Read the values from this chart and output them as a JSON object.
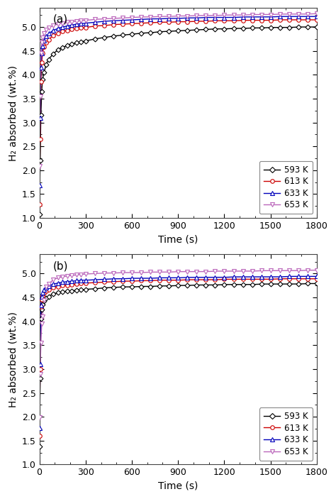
{
  "panel_a": {
    "label": "(a)",
    "series": [
      {
        "temp": "593 K",
        "color": "#000000",
        "marker": "D",
        "marker_size": 3.5,
        "x": [
          0,
          5,
          10,
          15,
          20,
          30,
          45,
          60,
          90,
          120,
          150,
          180,
          210,
          240,
          270,
          300,
          360,
          420,
          480,
          540,
          600,
          660,
          720,
          780,
          840,
          900,
          960,
          1020,
          1080,
          1140,
          1200,
          1260,
          1320,
          1380,
          1440,
          1500,
          1560,
          1620,
          1680,
          1740,
          1800
        ],
        "y": [
          1.08,
          2.2,
          3.15,
          3.65,
          3.9,
          4.05,
          4.22,
          4.32,
          4.44,
          4.52,
          4.57,
          4.61,
          4.64,
          4.67,
          4.69,
          4.71,
          4.75,
          4.78,
          4.81,
          4.83,
          4.85,
          4.87,
          4.88,
          4.9,
          4.91,
          4.92,
          4.93,
          4.94,
          4.95,
          4.96,
          4.96,
          4.97,
          4.97,
          4.98,
          4.98,
          4.99,
          4.99,
          4.99,
          5.0,
          5.0,
          5.0
        ]
      },
      {
        "temp": "613 K",
        "color": "#cc0000",
        "marker": "o",
        "marker_size": 4,
        "x": [
          0,
          5,
          10,
          15,
          20,
          30,
          45,
          60,
          90,
          120,
          150,
          180,
          210,
          240,
          270,
          300,
          360,
          420,
          480,
          540,
          600,
          660,
          720,
          780,
          840,
          900,
          960,
          1020,
          1080,
          1140,
          1200,
          1260,
          1320,
          1380,
          1440,
          1500,
          1560,
          1620,
          1680,
          1740,
          1800
        ],
        "y": [
          1.28,
          2.65,
          3.85,
          4.25,
          4.45,
          4.58,
          4.68,
          4.74,
          4.82,
          4.87,
          4.91,
          4.93,
          4.95,
          4.97,
          4.98,
          4.99,
          5.02,
          5.03,
          5.05,
          5.06,
          5.07,
          5.08,
          5.09,
          5.1,
          5.1,
          5.11,
          5.11,
          5.12,
          5.12,
          5.13,
          5.13,
          5.13,
          5.14,
          5.14,
          5.14,
          5.14,
          5.15,
          5.15,
          5.15,
          5.15,
          5.15
        ]
      },
      {
        "temp": "633 K",
        "color": "#0000bb",
        "marker": "^",
        "marker_size": 4,
        "x": [
          0,
          5,
          10,
          15,
          20,
          30,
          45,
          60,
          90,
          120,
          150,
          180,
          210,
          240,
          270,
          300,
          360,
          420,
          480,
          540,
          600,
          660,
          720,
          780,
          840,
          900,
          960,
          1020,
          1080,
          1140,
          1200,
          1260,
          1320,
          1380,
          1440,
          1500,
          1560,
          1620,
          1680,
          1740,
          1800
        ],
        "y": [
          1.68,
          3.1,
          4.15,
          4.45,
          4.6,
          4.72,
          4.8,
          4.86,
          4.93,
          4.97,
          5.0,
          5.02,
          5.04,
          5.06,
          5.07,
          5.08,
          5.1,
          5.12,
          5.13,
          5.14,
          5.15,
          5.16,
          5.17,
          5.17,
          5.18,
          5.18,
          5.19,
          5.19,
          5.2,
          5.2,
          5.2,
          5.2,
          5.21,
          5.21,
          5.21,
          5.21,
          5.22,
          5.22,
          5.22,
          5.22,
          5.22
        ]
      },
      {
        "temp": "653 K",
        "color": "#bb66bb",
        "marker": "v",
        "marker_size": 4,
        "x": [
          0,
          5,
          10,
          15,
          20,
          30,
          45,
          60,
          90,
          120,
          150,
          180,
          210,
          240,
          270,
          300,
          360,
          420,
          480,
          540,
          600,
          660,
          720,
          780,
          840,
          900,
          960,
          1020,
          1080,
          1140,
          1200,
          1260,
          1320,
          1380,
          1440,
          1500,
          1560,
          1620,
          1680,
          1740,
          1800
        ],
        "y": [
          2.08,
          3.55,
          4.45,
          4.68,
          4.78,
          4.87,
          4.94,
          4.98,
          5.03,
          5.06,
          5.08,
          5.1,
          5.11,
          5.12,
          5.13,
          5.14,
          5.16,
          5.17,
          5.18,
          5.19,
          5.2,
          5.21,
          5.21,
          5.22,
          5.22,
          5.23,
          5.23,
          5.24,
          5.24,
          5.24,
          5.25,
          5.25,
          5.25,
          5.26,
          5.26,
          5.26,
          5.27,
          5.27,
          5.27,
          5.27,
          5.28
        ]
      }
    ],
    "ylim": [
      1.0,
      5.4
    ],
    "yticks": [
      1.0,
      1.5,
      2.0,
      2.5,
      3.0,
      3.5,
      4.0,
      4.5,
      5.0
    ]
  },
  "panel_b": {
    "label": "(b)",
    "series": [
      {
        "temp": "593 K",
        "color": "#000000",
        "marker": "D",
        "marker_size": 3.5,
        "x": [
          0,
          5,
          10,
          15,
          20,
          30,
          45,
          60,
          90,
          120,
          150,
          180,
          210,
          240,
          270,
          300,
          360,
          420,
          480,
          540,
          600,
          660,
          720,
          780,
          840,
          900,
          960,
          1020,
          1080,
          1140,
          1200,
          1260,
          1320,
          1380,
          1440,
          1500,
          1560,
          1620,
          1680,
          1740,
          1800
        ],
        "y": [
          1.38,
          2.8,
          4.05,
          4.25,
          4.35,
          4.42,
          4.49,
          4.52,
          4.57,
          4.6,
          4.62,
          4.63,
          4.64,
          4.65,
          4.66,
          4.67,
          4.68,
          4.7,
          4.71,
          4.72,
          4.72,
          4.73,
          4.73,
          4.74,
          4.74,
          4.75,
          4.75,
          4.76,
          4.76,
          4.76,
          4.77,
          4.77,
          4.77,
          4.77,
          4.78,
          4.78,
          4.78,
          4.78,
          4.78,
          4.79,
          4.79
        ]
      },
      {
        "temp": "613 K",
        "color": "#cc0000",
        "marker": "o",
        "marker_size": 4,
        "x": [
          0,
          5,
          10,
          15,
          20,
          30,
          45,
          60,
          90,
          120,
          150,
          180,
          210,
          240,
          270,
          300,
          360,
          420,
          480,
          540,
          600,
          660,
          720,
          780,
          840,
          900,
          960,
          1020,
          1080,
          1140,
          1200,
          1260,
          1320,
          1380,
          1440,
          1500,
          1560,
          1620,
          1680,
          1740,
          1800
        ],
        "y": [
          1.6,
          3.0,
          4.3,
          4.45,
          4.53,
          4.59,
          4.64,
          4.67,
          4.71,
          4.73,
          4.75,
          4.76,
          4.77,
          4.78,
          4.79,
          4.8,
          4.81,
          4.82,
          4.83,
          4.84,
          4.84,
          4.85,
          4.85,
          4.86,
          4.86,
          4.86,
          4.87,
          4.87,
          4.87,
          4.87,
          4.88,
          4.88,
          4.88,
          4.88,
          4.88,
          4.88,
          4.89,
          4.89,
          4.89,
          4.89,
          4.89
        ]
      },
      {
        "temp": "633 K",
        "color": "#0000bb",
        "marker": "^",
        "marker_size": 4,
        "x": [
          0,
          5,
          10,
          15,
          20,
          30,
          45,
          60,
          90,
          120,
          150,
          180,
          210,
          240,
          270,
          300,
          360,
          420,
          480,
          540,
          600,
          660,
          720,
          780,
          840,
          900,
          960,
          1020,
          1080,
          1140,
          1200,
          1260,
          1320,
          1380,
          1440,
          1500,
          1560,
          1620,
          1680,
          1740,
          1800
        ],
        "y": [
          1.77,
          3.1,
          4.33,
          4.52,
          4.6,
          4.66,
          4.71,
          4.74,
          4.78,
          4.8,
          4.82,
          4.83,
          4.84,
          4.85,
          4.86,
          4.86,
          4.87,
          4.88,
          4.89,
          4.89,
          4.9,
          4.9,
          4.9,
          4.91,
          4.91,
          4.91,
          4.92,
          4.92,
          4.92,
          4.92,
          4.92,
          4.93,
          4.93,
          4.93,
          4.93,
          4.93,
          4.93,
          4.94,
          4.94,
          4.94,
          4.94
        ]
      },
      {
        "temp": "653 K",
        "color": "#bb66bb",
        "marker": "v",
        "marker_size": 4,
        "x": [
          0,
          5,
          10,
          15,
          20,
          30,
          45,
          60,
          90,
          120,
          150,
          180,
          210,
          240,
          270,
          300,
          360,
          420,
          480,
          540,
          600,
          660,
          720,
          780,
          840,
          900,
          960,
          1020,
          1080,
          1140,
          1200,
          1260,
          1320,
          1380,
          1440,
          1500,
          1560,
          1620,
          1680,
          1740,
          1800
        ],
        "y": [
          1.99,
          2.9,
          3.55,
          3.95,
          4.1,
          4.44,
          4.72,
          4.78,
          4.87,
          4.91,
          4.93,
          4.95,
          4.96,
          4.97,
          4.98,
          4.99,
          5.0,
          5.01,
          5.01,
          5.02,
          5.02,
          5.02,
          5.03,
          5.03,
          5.03,
          5.04,
          5.04,
          5.04,
          5.04,
          5.05,
          5.05,
          5.05,
          5.05,
          5.05,
          5.06,
          5.06,
          5.06,
          5.06,
          5.06,
          5.07,
          5.07
        ]
      }
    ],
    "ylim": [
      1.0,
      5.4
    ],
    "yticks": [
      1.0,
      1.5,
      2.0,
      2.5,
      3.0,
      3.5,
      4.0,
      4.5,
      5.0
    ]
  },
  "xlabel": "Time (s)",
  "ylabel": "H₂ absorbed (wt.%)",
  "xlim": [
    0,
    1800
  ],
  "xticks": [
    0,
    300,
    600,
    900,
    1200,
    1500,
    1800
  ],
  "legend_labels": [
    "593 K",
    "613 K",
    "633 K",
    "653 K"
  ],
  "legend_colors": [
    "#000000",
    "#cc0000",
    "#0000bb",
    "#bb66bb"
  ],
  "legend_markers": [
    "D",
    "o",
    "^",
    "v"
  ]
}
